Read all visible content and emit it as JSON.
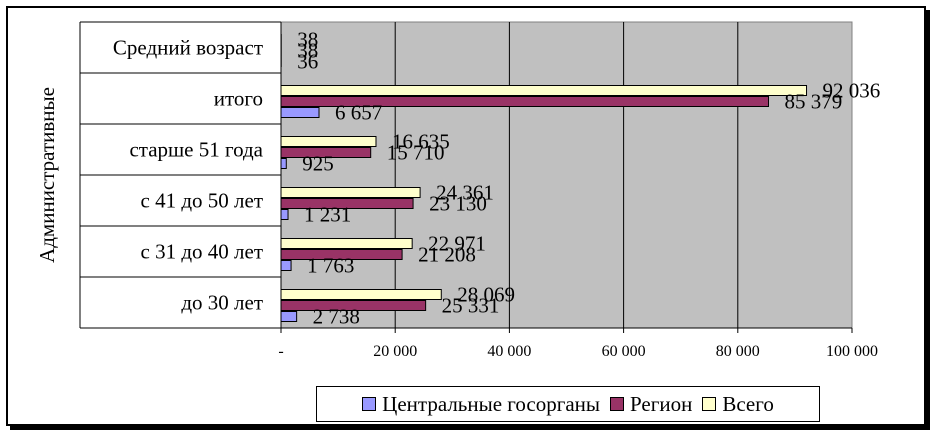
{
  "chart_data": {
    "type": "bar",
    "orientation": "horizontal",
    "ylabel": "Административные",
    "xlabel": "",
    "categories": [
      "до 30 лет",
      "с 31 до 40 лет",
      "с 41 до 50 лет",
      "старше 51 года",
      "итого",
      "Средний возраст"
    ],
    "xlim": [
      0,
      100000
    ],
    "x_ticks": [
      0,
      20000,
      40000,
      60000,
      80000,
      100000
    ],
    "x_tick_labels": [
      "-",
      "20 000",
      "40 000",
      "60 000",
      "80 000",
      "100 000"
    ],
    "grid": true,
    "legend_position": "bottom",
    "series": [
      {
        "name": "Центральные госорганы",
        "color": "#9999ff",
        "values": [
          2738,
          1763,
          1231,
          925,
          6657,
          36
        ],
        "labels": [
          "2 738",
          "1 763",
          "1 231",
          "925",
          "6 657",
          "36"
        ]
      },
      {
        "name": "Регион",
        "color": "#993366",
        "values": [
          25331,
          21208,
          23130,
          15710,
          85379,
          38
        ],
        "labels": [
          "25 331",
          "21 208",
          "23 130",
          "15 710",
          "85 379",
          "38"
        ]
      },
      {
        "name": "Всего",
        "color": "#ffffcc",
        "values": [
          28069,
          22971,
          24361,
          16635,
          92036,
          38
        ],
        "labels": [
          "28 069",
          "22 971",
          "24 361",
          "16 635",
          "92 036",
          "38"
        ]
      }
    ]
  }
}
